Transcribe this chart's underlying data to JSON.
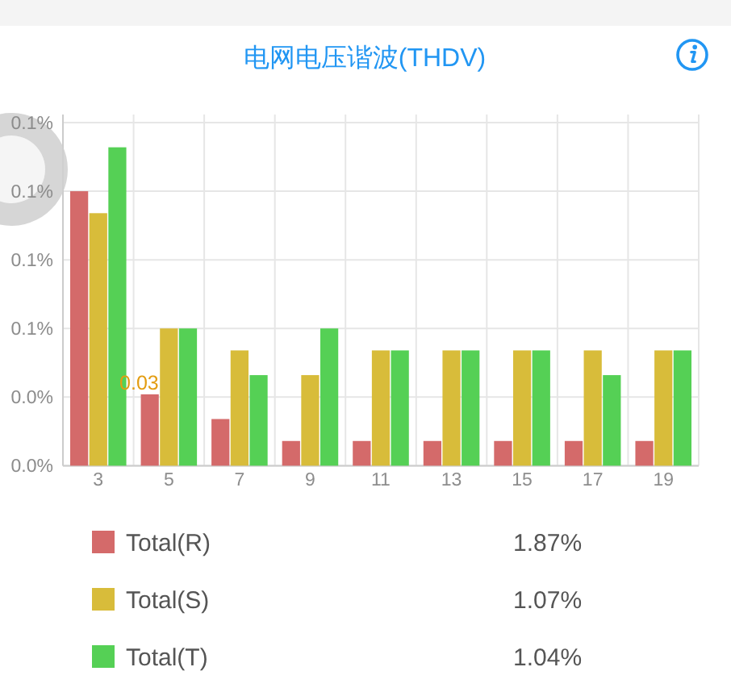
{
  "chart_data": {
    "type": "bar",
    "title": "电网电压谐波(THDV)",
    "categories": [
      "3",
      "5",
      "7",
      "9",
      "11",
      "13",
      "15",
      "17",
      "19"
    ],
    "series": [
      {
        "name": "Total(R)",
        "color": "#d46a6a",
        "values": [
          0.1,
          0.026,
          0.017,
          0.009,
          0.009,
          0.009,
          0.009,
          0.009,
          0.009
        ],
        "value_labels": [
          null,
          "0.03",
          null,
          null,
          null,
          null,
          null,
          null,
          null
        ]
      },
      {
        "name": "Total(S)",
        "color": "#d8bc3a",
        "values": [
          0.092,
          0.05,
          0.042,
          0.033,
          0.042,
          0.042,
          0.042,
          0.042,
          0.042
        ]
      },
      {
        "name": "Total(T)",
        "color": "#55d055",
        "values": [
          0.116,
          0.05,
          0.033,
          0.05,
          0.042,
          0.042,
          0.042,
          0.033,
          0.042
        ]
      }
    ],
    "ylim": [
      0,
      0.125
    ],
    "yticks": [
      {
        "value": 0,
        "label": "0.0%"
      },
      {
        "value": 0.025,
        "label": "0.0%"
      },
      {
        "value": 0.05,
        "label": "0.1%"
      },
      {
        "value": 0.075,
        "label": "0.1%"
      },
      {
        "value": 0.1,
        "label": "0.1%"
      },
      {
        "value": 0.125,
        "label": "0.1%"
      }
    ],
    "grid": true,
    "legend": "bottom",
    "annotations": [
      "1.87%",
      "1.07%",
      "1.04%"
    ]
  }
}
